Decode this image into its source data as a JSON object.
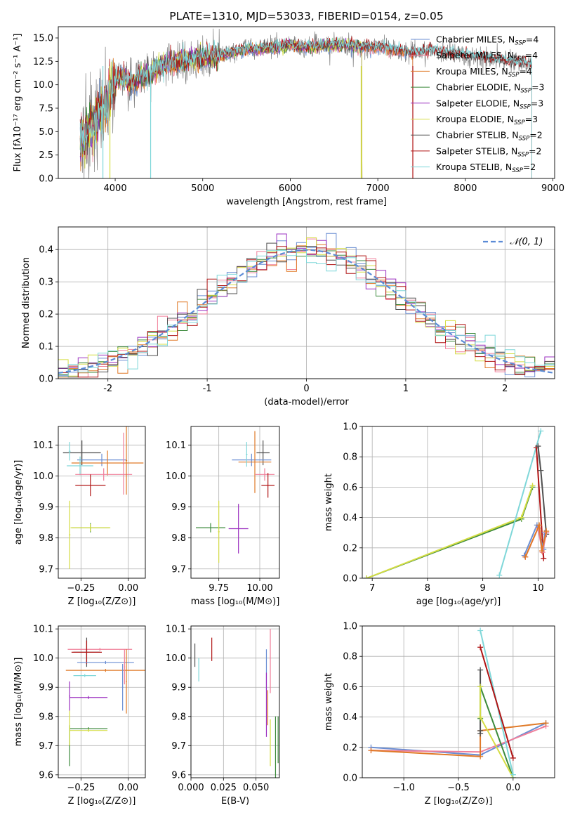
{
  "colors": {
    "chabrier_miles": "#6a8ed3",
    "salpeter_miles": "#f07f9a",
    "kroupa_miles": "#e07a28",
    "chabrier_elodie": "#3c8a3c",
    "salpeter_elodie": "#9b30c0",
    "kroupa_elodie": "#d5dd44",
    "chabrier_stelib": "#505050",
    "salpeter_stelib": "#b01515",
    "kroupa_stelib": "#7fd7d9",
    "data_gray": "#808080",
    "gaussian": "#5b8bd6"
  },
  "legend_models": [
    {
      "key": "chabrier_miles",
      "base": "Chabrier MILES, N",
      "sub": "SSP",
      "tail": "=4"
    },
    {
      "key": "salpeter_miles",
      "base": "Salpeter MILES, N",
      "sub": "SSP",
      "tail": "=4"
    },
    {
      "key": "kroupa_miles",
      "base": "Kroupa MILES, N",
      "sub": "SSP",
      "tail": "=4"
    },
    {
      "key": "chabrier_elodie",
      "base": "Chabrier ELODIE, N",
      "sub": "SSP",
      "tail": "=3"
    },
    {
      "key": "salpeter_elodie",
      "base": "Salpeter ELODIE, N",
      "sub": "SSP",
      "tail": "=3"
    },
    {
      "key": "kroupa_elodie",
      "base": "Kroupa ELODIE, N",
      "sub": "SSP",
      "tail": "=3"
    },
    {
      "key": "chabrier_stelib",
      "base": "Chabrier STELIB, N",
      "sub": "SSP",
      "tail": "=2"
    },
    {
      "key": "salpeter_stelib",
      "base": "Salpeter STELIB, N",
      "sub": "SSP",
      "tail": "=2"
    },
    {
      "key": "kroupa_stelib",
      "base": "Kroupa STELIB, N",
      "sub": "SSP",
      "tail": "=2"
    }
  ],
  "chart_data": [
    {
      "type": "line",
      "title": "PLATE=1310, MJD=53033, FIBERID=0154, z=0.05",
      "xlabel": "wavelength [Angstrom, rest frame]",
      "ylabel": "Flux [fλ10⁻¹⁷ erg cm⁻² s⁻¹ A⁻¹]",
      "xlim": [
        3350,
        9020
      ],
      "ylim": [
        0,
        16.2
      ],
      "xticks": [
        4000,
        5000,
        6000,
        7000,
        8000,
        9000
      ],
      "yticks": [
        0.0,
        2.5,
        5.0,
        7.5,
        10.0,
        12.5,
        15.0
      ],
      "legend": "top-right",
      "continuum": {
        "x": [
          3620,
          3700,
          3800,
          3900,
          4000,
          4100,
          4200,
          4300,
          4400,
          4500,
          4700,
          5000,
          5200,
          5500,
          5800,
          6000,
          6200,
          6500,
          6800,
          7000,
          7200,
          7400,
          7600,
          8000,
          8300,
          8500,
          8760
        ],
        "y": [
          4.2,
          5.0,
          6.5,
          8.0,
          10.5,
          10.6,
          10.2,
          11.0,
          10.8,
          11.9,
          12.4,
          12.9,
          13.1,
          13.8,
          13.9,
          14.2,
          14.0,
          14.3,
          14.1,
          14.0,
          13.7,
          13.4,
          13.7,
          13.1,
          12.7,
          12.5,
          12.1
        ]
      },
      "model_spans": {
        "miles": [
          3600,
          7400
        ],
        "elodie": [
          3600,
          6820
        ],
        "stelib": [
          3600,
          8760
        ]
      }
    },
    {
      "type": "histogram",
      "xlabel": "(data-model)/error",
      "ylabel": "Normed distribution",
      "xlim": [
        -2.5,
        2.5
      ],
      "ylim": [
        0,
        0.47
      ],
      "xticks": [
        -2,
        -1,
        0,
        1,
        2
      ],
      "yticks": [
        0.0,
        0.1,
        0.2,
        0.3,
        0.4
      ],
      "bin_width": 0.1,
      "bin_start": -2.5,
      "reference_curve": "N(0,1)",
      "legend": "top-right",
      "legend_label": "𝒩(0, 1)"
    },
    {
      "type": "errorbar",
      "xlabel": "Z [log₁₀(Z/Z⊙)]",
      "ylabel": "age  [log₁₀(age/yr)]",
      "xlim": [
        -0.37,
        0.09
      ],
      "ylim": [
        9.67,
        10.16
      ],
      "xticks": [
        -0.25,
        0.0
      ],
      "xticklabels": [
        "−0.25",
        "0.00"
      ],
      "yticks": [
        9.7,
        9.8,
        9.9,
        10.0,
        10.1
      ],
      "points": [
        {
          "m": "chabrier_stelib",
          "x": -0.245,
          "y": 10.075,
          "xe": 0.1,
          "ye": 0.04
        },
        {
          "m": "chabrier_miles",
          "x": -0.14,
          "y": 10.052,
          "xe": 0.13,
          "ye": 0.02
        },
        {
          "m": "kroupa_miles",
          "x": -0.11,
          "y": 10.042,
          "xe": 0.19,
          "ye": 0.04
        },
        {
          "m": "kroupa_stelib",
          "x": -0.255,
          "y": 10.033,
          "xe": 0.07,
          "ye": 0.03
        },
        {
          "m": "salpeter_miles",
          "x": -0.13,
          "y": 10.005,
          "xe": 0.15,
          "ye": 0.02
        },
        {
          "m": "salpeter_stelib",
          "x": -0.2,
          "y": 9.97,
          "xe": 0.08,
          "ye": 0.035
        },
        {
          "m": "chabrier_elodie",
          "x": -0.2,
          "y": 9.833,
          "xe": 0.1,
          "ye": 0.015
        },
        {
          "m": "kroupa_elodie",
          "x": -0.2,
          "y": 9.833,
          "xe": 0.105,
          "ye": 0.012
        },
        {
          "m": "kroupa_stelib",
          "x": -0.31,
          "y": 10.08,
          "xe": 0.005,
          "ye": 0.03
        },
        {
          "m": "kroupa_elodie",
          "x": -0.31,
          "y": 9.81,
          "xe": 0.004,
          "ye": 0.11
        },
        {
          "m": "salpeter_miles",
          "x": -0.025,
          "y": 10.04,
          "xe": 0.004,
          "ye": 0.1
        },
        {
          "m": "kroupa_miles",
          "x": -0.01,
          "y": 10.05,
          "xe": 0.004,
          "ye": 0.11
        }
      ]
    },
    {
      "type": "errorbar",
      "xlabel": "mass [log₁₀(M/M⊙)]",
      "ylabel": "",
      "xlim": [
        9.58,
        10.12
      ],
      "ylim": [
        9.67,
        10.16
      ],
      "xticks": [
        9.75,
        10.0
      ],
      "xticklabels": [
        "9.75",
        "10.00"
      ],
      "yticks": [
        9.7,
        9.8,
        9.9,
        10.0,
        10.1
      ],
      "points": [
        {
          "m": "chabrier_stelib",
          "x": 10.02,
          "y": 10.075,
          "xe": 0.04,
          "ye": 0.04
        },
        {
          "m": "chabrier_miles",
          "x": 9.95,
          "y": 10.052,
          "xe": 0.12,
          "ye": 0.02
        },
        {
          "m": "kroupa_miles",
          "x": 9.97,
          "y": 10.045,
          "xe": 0.1,
          "ye": 0.1
        },
        {
          "m": "salpeter_miles",
          "x": 10.03,
          "y": 10.005,
          "xe": 0.06,
          "ye": 0.02
        },
        {
          "m": "salpeter_stelib",
          "x": 10.05,
          "y": 9.97,
          "xe": 0.04,
          "ye": 0.04
        },
        {
          "m": "chabrier_elodie",
          "x": 9.7,
          "y": 9.833,
          "xe": 0.09,
          "ye": 0.015
        },
        {
          "m": "salpeter_elodie",
          "x": 9.87,
          "y": 9.83,
          "xe": 0.06,
          "ye": 0.08
        },
        {
          "m": "kroupa_elodie",
          "x": 9.75,
          "y": 9.82,
          "xe": 0.005,
          "ye": 0.1
        },
        {
          "m": "kroupa_stelib",
          "x": 9.92,
          "y": 10.07,
          "xe": 0.005,
          "ye": 0.04
        }
      ]
    },
    {
      "type": "line",
      "xlabel": "age  [log₁₀(age/yr)]",
      "ylabel": "mass weight",
      "xlim": [
        6.82,
        10.3
      ],
      "ylim": [
        0,
        1
      ],
      "xticks": [
        7,
        8,
        9,
        10
      ],
      "yticks": [
        0.0,
        0.2,
        0.4,
        0.6,
        0.8,
        1.0
      ],
      "series": [
        {
          "m": "chabrier_elodie",
          "x": [
            6.9,
            9.7,
            9.9
          ],
          "y": [
            0.0,
            0.39,
            0.6
          ]
        },
        {
          "m": "kroupa_elodie",
          "x": [
            6.9,
            9.7,
            9.9
          ],
          "y": [
            0.0,
            0.4,
            0.61
          ]
        },
        {
          "m": "kroupa_stelib",
          "x": [
            9.3,
            10.05
          ],
          "y": [
            0.02,
            0.97
          ]
        },
        {
          "m": "salpeter_stelib",
          "x": [
            9.97,
            10.1
          ],
          "y": [
            0.86,
            0.13
          ]
        },
        {
          "m": "chabrier_stelib",
          "x": [
            10.0,
            10.05,
            10.15
          ],
          "y": [
            0.87,
            0.71,
            0.29
          ]
        },
        {
          "m": "chabrier_miles",
          "x": [
            9.75,
            9.98,
            10.1,
            10.12
          ],
          "y": [
            0.15,
            0.35,
            0.19,
            0.3
          ]
        },
        {
          "m": "salpeter_miles",
          "x": [
            9.77,
            10.0,
            10.08,
            10.15
          ],
          "y": [
            0.14,
            0.33,
            0.17,
            0.3
          ]
        },
        {
          "m": "kroupa_miles",
          "x": [
            9.77,
            10.02,
            10.07,
            10.15
          ],
          "y": [
            0.14,
            0.35,
            0.18,
            0.31
          ]
        }
      ]
    },
    {
      "type": "errorbar",
      "xlabel": "Z [log₁₀(Z/Z⊙)]",
      "ylabel": "mass [log₁₀(M/M⊙)]",
      "xlim": [
        -0.37,
        0.09
      ],
      "ylim": [
        9.59,
        10.11
      ],
      "xticks": [
        -0.25,
        0.0
      ],
      "xticklabels": [
        "−0.25",
        "0.00"
      ],
      "yticks": [
        9.6,
        9.7,
        9.8,
        9.9,
        10.0,
        10.1
      ],
      "points": [
        {
          "m": "salpeter_miles",
          "x": -0.15,
          "y": 10.03,
          "xe": 0.17,
          "ye": 0.005
        },
        {
          "m": "chabrier_stelib",
          "x": -0.22,
          "y": 10.02,
          "xe": 0.07,
          "ye": 0.05
        },
        {
          "m": "salpeter_stelib",
          "x": -0.22,
          "y": 10.02,
          "xe": 0.08,
          "ye": 0.04
        },
        {
          "m": "chabrier_miles",
          "x": -0.12,
          "y": 9.985,
          "xe": 0.15,
          "ye": 0.005
        },
        {
          "m": "kroupa_miles",
          "x": -0.12,
          "y": 9.958,
          "xe": 0.21,
          "ye": 0.005
        },
        {
          "m": "kroupa_stelib",
          "x": -0.23,
          "y": 9.94,
          "xe": 0.06,
          "ye": 0.005
        },
        {
          "m": "salpeter_elodie",
          "x": -0.21,
          "y": 9.865,
          "xe": 0.1,
          "ye": 0.005
        },
        {
          "m": "chabrier_elodie",
          "x": -0.21,
          "y": 9.758,
          "xe": 0.1,
          "ye": 0.005
        },
        {
          "m": "kroupa_elodie",
          "x": -0.21,
          "y": 9.752,
          "xe": 0.1,
          "ye": 0.005
        },
        {
          "m": "salpeter_elodie",
          "x": -0.31,
          "y": 9.87,
          "xe": 0.003,
          "ye": 0.05
        },
        {
          "m": "chabrier_elodie",
          "x": -0.31,
          "y": 9.7,
          "xe": 0.003,
          "ye": 0.07
        },
        {
          "m": "kroupa_elodie",
          "x": -0.31,
          "y": 9.76,
          "xe": 0.003,
          "ye": 0.06
        },
        {
          "m": "salpeter_miles",
          "x": -0.02,
          "y": 9.97,
          "xe": 0.003,
          "ye": 0.06
        },
        {
          "m": "kroupa_miles",
          "x": -0.01,
          "y": 9.92,
          "xe": 0.003,
          "ye": 0.11
        },
        {
          "m": "chabrier_miles",
          "x": -0.03,
          "y": 9.9,
          "xe": 0.003,
          "ye": 0.08
        }
      ]
    },
    {
      "type": "errorbar",
      "xlabel": "E(B-V)",
      "ylabel": "",
      "xlim": [
        0.0,
        0.068
      ],
      "ylim": [
        9.59,
        10.11
      ],
      "xticks": [
        0.0,
        0.025,
        0.05
      ],
      "xticklabels": [
        "0.000",
        "0.025",
        "0.050"
      ],
      "yticks": [
        9.6,
        9.7,
        9.8,
        9.9,
        10.0,
        10.1
      ],
      "points": [
        {
          "m": "chabrier_stelib",
          "x": 0.003,
          "y": 10.01,
          "xe": 0.0,
          "ye": 0.04
        },
        {
          "m": "kroupa_stelib",
          "x": 0.006,
          "y": 9.96,
          "xe": 0.0,
          "ye": 0.04
        },
        {
          "m": "salpeter_stelib",
          "x": 0.016,
          "y": 10.03,
          "xe": 0.0,
          "ye": 0.04
        },
        {
          "m": "chabrier_miles",
          "x": 0.058,
          "y": 9.96,
          "xe": 0.0,
          "ye": 0.07
        },
        {
          "m": "salpeter_elodie",
          "x": 0.058,
          "y": 9.84,
          "xe": 0.0,
          "ye": 0.11
        },
        {
          "m": "kroupa_miles",
          "x": 0.059,
          "y": 9.83,
          "xe": 0.0,
          "ye": 0.06
        },
        {
          "m": "salpeter_miles",
          "x": 0.061,
          "y": 9.99,
          "xe": 0.0,
          "ye": 0.11
        },
        {
          "m": "kroupa_elodie",
          "x": 0.061,
          "y": 9.71,
          "xe": 0.0,
          "ye": 0.08
        },
        {
          "m": "chabrier_elodie",
          "x": 0.065,
          "y": 9.68,
          "xe": 0.0,
          "ye": 0.12
        },
        {
          "m": "chabrier_elodie",
          "x": 0.067,
          "y": 9.72,
          "xe": 0.0,
          "ye": 0.08
        }
      ]
    },
    {
      "type": "line",
      "xlabel": "Z [log₁₀(Z/Z⊙)]",
      "ylabel": "mass weight",
      "xlim": [
        -1.38,
        0.38
      ],
      "ylim": [
        0,
        1
      ],
      "xticks": [
        -1.0,
        -0.5,
        0.0
      ],
      "xticklabels": [
        "−1.0",
        "−0.5",
        "0.0"
      ],
      "yticks": [
        0.0,
        0.2,
        0.4,
        0.6,
        0.8,
        1.0
      ],
      "series": [
        {
          "m": "chabrier_miles",
          "x": [
            -1.3,
            -0.3,
            0.3
          ],
          "y": [
            0.2,
            0.15,
            0.36
          ]
        },
        {
          "m": "salpeter_miles",
          "x": [
            -1.3,
            -0.3,
            0.3
          ],
          "y": [
            0.18,
            0.17,
            0.34
          ]
        },
        {
          "m": "kroupa_miles",
          "x": [
            -1.3,
            -0.3,
            -0.3,
            0.3
          ],
          "y": [
            0.18,
            0.14,
            0.31,
            0.36
          ]
        },
        {
          "m": "chabrier_stelib",
          "x": [
            -0.3,
            -0.3,
            -0.3
          ],
          "y": [
            0.71,
            0.29,
            0.31
          ]
        },
        {
          "m": "chabrier_elodie",
          "x": [
            -0.3,
            -0.3,
            0.0
          ],
          "y": [
            0.39,
            0.6,
            0.0
          ]
        },
        {
          "m": "kroupa_elodie",
          "x": [
            -0.3,
            -0.3,
            0.0
          ],
          "y": [
            0.6,
            0.4,
            0.0
          ]
        },
        {
          "m": "kroupa_stelib",
          "x": [
            -0.3,
            0.0
          ],
          "y": [
            0.97,
            0.02
          ]
        },
        {
          "m": "salpeter_stelib",
          "x": [
            -0.3,
            0.0
          ],
          "y": [
            0.86,
            0.13
          ]
        }
      ]
    }
  ]
}
